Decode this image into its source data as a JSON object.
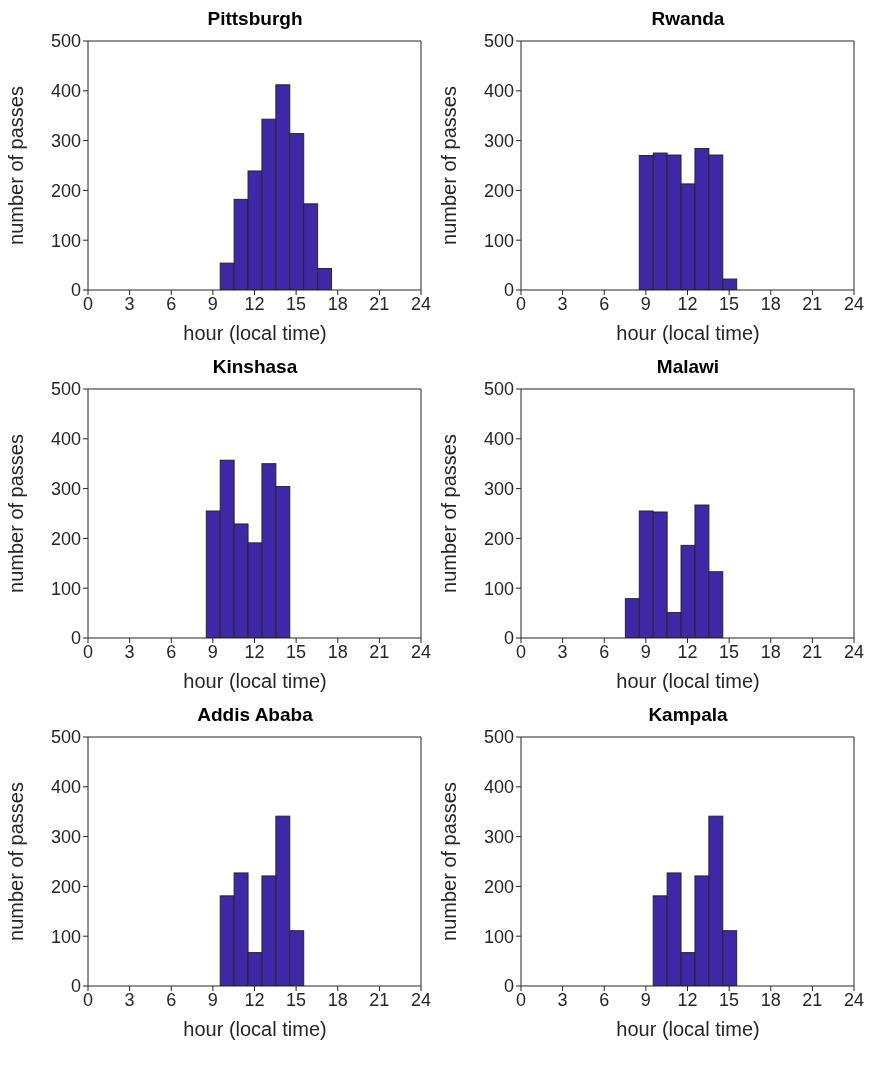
{
  "chart_data": [
    {
      "type": "histogram",
      "title": "Pittsburgh",
      "xlabel": "hour (local time)",
      "ylabel": "number of passes",
      "color": "#3f28a8",
      "bins": [
        0.5,
        1.5,
        2.5,
        3.5,
        4.5,
        5.5,
        6.5,
        7.5,
        8.5,
        9.5,
        10.5,
        11.5,
        12.5,
        13.5,
        14.5,
        15.5,
        16.5,
        17.5,
        18.5,
        19.5,
        20.5,
        21.5,
        22.5,
        23.5
      ],
      "values": [
        0,
        0,
        0,
        0,
        0,
        0,
        0,
        0,
        0,
        54,
        182,
        239,
        343,
        412,
        314,
        173,
        43,
        0,
        0,
        0,
        0,
        0,
        0
      ],
      "xlim": [
        0,
        24
      ],
      "xticks": [
        0,
        3,
        6,
        9,
        12,
        15,
        18,
        21,
        24
      ],
      "ylim": [
        0,
        500
      ],
      "yticks": [
        0,
        100,
        200,
        300,
        400,
        500
      ]
    },
    {
      "type": "histogram",
      "title": "Rwanda",
      "xlabel": "hour (local time)",
      "ylabel": "number of passes",
      "color": "#3f28a8",
      "bins": [
        0.5,
        1.5,
        2.5,
        3.5,
        4.5,
        5.5,
        6.5,
        7.5,
        8.5,
        9.5,
        10.5,
        11.5,
        12.5,
        13.5,
        14.5,
        15.5,
        16.5,
        17.5,
        18.5,
        19.5,
        20.5,
        21.5,
        22.5,
        23.5
      ],
      "values": [
        0,
        0,
        0,
        0,
        0,
        0,
        0,
        0,
        270,
        275,
        271,
        213,
        284,
        271,
        22,
        0,
        0,
        0,
        0,
        0,
        0,
        0,
        0
      ],
      "xlim": [
        0,
        24
      ],
      "xticks": [
        0,
        3,
        6,
        9,
        12,
        15,
        18,
        21,
        24
      ],
      "ylim": [
        0,
        500
      ],
      "yticks": [
        0,
        100,
        200,
        300,
        400,
        500
      ]
    },
    {
      "type": "histogram",
      "title": "Kinshasa",
      "xlabel": "hour (local time)",
      "ylabel": "number of passes",
      "color": "#3f28a8",
      "bins": [
        0.5,
        1.5,
        2.5,
        3.5,
        4.5,
        5.5,
        6.5,
        7.5,
        8.5,
        9.5,
        10.5,
        11.5,
        12.5,
        13.5,
        14.5,
        15.5,
        16.5,
        17.5,
        18.5,
        19.5,
        20.5,
        21.5,
        22.5,
        23.5
      ],
      "values": [
        0,
        0,
        0,
        0,
        0,
        0,
        0,
        0,
        255,
        357,
        229,
        191,
        350,
        304,
        0,
        0,
        0,
        0,
        0,
        0,
        0,
        0,
        0
      ],
      "xlim": [
        0,
        24
      ],
      "xticks": [
        0,
        3,
        6,
        9,
        12,
        15,
        18,
        21,
        24
      ],
      "ylim": [
        0,
        500
      ],
      "yticks": [
        0,
        100,
        200,
        300,
        400,
        500
      ]
    },
    {
      "type": "histogram",
      "title": "Malawi",
      "xlabel": "hour (local time)",
      "ylabel": "number of passes",
      "color": "#3f28a8",
      "bins": [
        0.5,
        1.5,
        2.5,
        3.5,
        4.5,
        5.5,
        6.5,
        7.5,
        8.5,
        9.5,
        10.5,
        11.5,
        12.5,
        13.5,
        14.5,
        15.5,
        16.5,
        17.5,
        18.5,
        19.5,
        20.5,
        21.5,
        22.5,
        23.5
      ],
      "values": [
        0,
        0,
        0,
        0,
        0,
        0,
        0,
        79,
        255,
        253,
        51,
        186,
        267,
        133,
        0,
        0,
        0,
        0,
        0,
        0,
        0,
        0,
        0
      ],
      "xlim": [
        0,
        24
      ],
      "xticks": [
        0,
        3,
        6,
        9,
        12,
        15,
        18,
        21,
        24
      ],
      "ylim": [
        0,
        500
      ],
      "yticks": [
        0,
        100,
        200,
        300,
        400,
        500
      ]
    },
    {
      "type": "histogram",
      "title": "Addis Ababa",
      "xlabel": "hour (local time)",
      "ylabel": "number of passes",
      "color": "#3f28a8",
      "bins": [
        0.5,
        1.5,
        2.5,
        3.5,
        4.5,
        5.5,
        6.5,
        7.5,
        8.5,
        9.5,
        10.5,
        11.5,
        12.5,
        13.5,
        14.5,
        15.5,
        16.5,
        17.5,
        18.5,
        19.5,
        20.5,
        21.5,
        22.5,
        23.5
      ],
      "values": [
        0,
        0,
        0,
        0,
        0,
        0,
        0,
        0,
        0,
        181,
        227,
        67,
        221,
        341,
        111,
        0,
        0,
        0,
        0,
        0,
        0,
        0,
        0
      ],
      "xlim": [
        0,
        24
      ],
      "xticks": [
        0,
        3,
        6,
        9,
        12,
        15,
        18,
        21,
        24
      ],
      "ylim": [
        0,
        500
      ],
      "yticks": [
        0,
        100,
        200,
        300,
        400,
        500
      ]
    },
    {
      "type": "histogram",
      "title": "Kampala",
      "xlabel": "hour (local time)",
      "ylabel": "number of passes",
      "color": "#3f28a8",
      "bins": [
        0.5,
        1.5,
        2.5,
        3.5,
        4.5,
        5.5,
        6.5,
        7.5,
        8.5,
        9.5,
        10.5,
        11.5,
        12.5,
        13.5,
        14.5,
        15.5,
        16.5,
        17.5,
        18.5,
        19.5,
        20.5,
        21.5,
        22.5,
        23.5
      ],
      "values": [
        0,
        0,
        0,
        0,
        0,
        0,
        0,
        0,
        0,
        181,
        227,
        67,
        221,
        341,
        111,
        0,
        0,
        0,
        0,
        0,
        0,
        0,
        0
      ],
      "xlim": [
        0,
        24
      ],
      "xticks": [
        0,
        3,
        6,
        9,
        12,
        15,
        18,
        21,
        24
      ],
      "ylim": [
        0,
        500
      ],
      "yticks": [
        0,
        100,
        200,
        300,
        400,
        500
      ]
    }
  ]
}
